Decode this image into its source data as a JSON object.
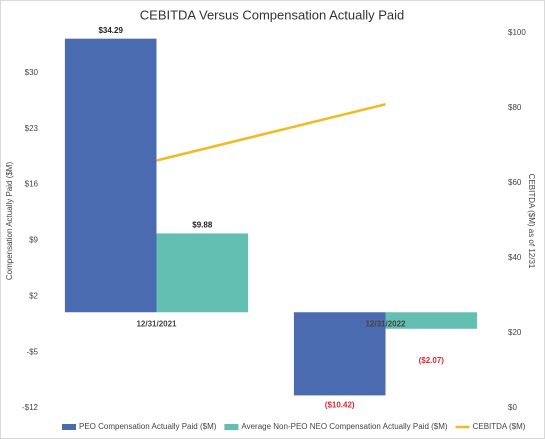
{
  "chart_data": {
    "type": "bar",
    "title": "CEBITDA Versus Compensation Actually Paid",
    "categories": [
      "12/31/2021",
      "12/31/2022"
    ],
    "series": [
      {
        "name": "PEO Compensation Actually Paid ($M)",
        "color": "#4a6baf",
        "values": [
          34.29,
          -10.42
        ],
        "value_labels": [
          "$34.29",
          "($10.42)"
        ]
      },
      {
        "name": "Average Non-PEO NEO Compensation Actually Paid ($M)",
        "color": "#62bfb2",
        "values": [
          9.88,
          -2.07
        ],
        "value_labels": [
          "$9.88",
          "($2.07)"
        ]
      },
      {
        "name": "CEBITDA ($M)",
        "type": "line",
        "axis": "y2",
        "color": "#f0bb1e",
        "values": [
          66,
          81
        ]
      }
    ],
    "ylabel": "Compensation Actually Paid ($M)",
    "y2label": "CEBITDA ($M) as of 12/31",
    "ylim": [
      -12,
      35
    ],
    "yticks": [
      {
        "value": 30,
        "label": "$30"
      },
      {
        "value": 23,
        "label": "$23"
      },
      {
        "value": 16,
        "label": "$16"
      },
      {
        "value": 9,
        "label": "$9"
      },
      {
        "value": 2,
        "label": "$2"
      },
      {
        "value": -5,
        "label": "-$5"
      },
      {
        "value": -12,
        "label": "-$12"
      }
    ],
    "y2lim": [
      0,
      100
    ],
    "y2ticks": [
      {
        "value": 100,
        "label": "$100"
      },
      {
        "value": 80,
        "label": "$80"
      },
      {
        "value": 60,
        "label": "$60"
      },
      {
        "value": 40,
        "label": "$40"
      },
      {
        "value": 20,
        "label": "$20"
      },
      {
        "value": 0,
        "label": "$0"
      }
    ],
    "legend": "bottom"
  }
}
